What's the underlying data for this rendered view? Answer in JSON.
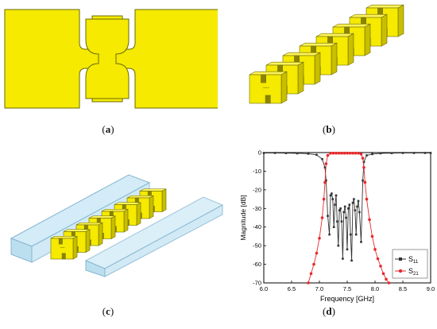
{
  "figure": {
    "captions": {
      "a": "a",
      "b": "b",
      "c": "c",
      "d": "d"
    }
  },
  "colors": {
    "metal": "#f5ea00",
    "metal_edge": "#6b6b00",
    "metal_side": "#c9be00",
    "metal_top": "#fff45a",
    "waveguide": "#bcdff0",
    "waveguide_edge": "#86b6cf",
    "s11": "#222222",
    "s21": "#e8282a"
  },
  "chart_data": {
    "type": "line",
    "xlabel": "Frequency [GHz]",
    "ylabel": "Magnitude [dB]",
    "xlim": [
      6.0,
      9.0
    ],
    "ylim": [
      -70,
      0
    ],
    "x_ticks": [
      "6.0",
      "6.5",
      "7.0",
      "7.5",
      "8.0",
      "8.5",
      "9.0"
    ],
    "y_ticks": [
      "0",
      "-10",
      "-20",
      "-30",
      "-40",
      "-50",
      "-60",
      "-70"
    ],
    "legend_position": "bottom-right",
    "series": [
      {
        "name": "S11",
        "label_main": "S",
        "label_sub": "11",
        "marker": "square",
        "color": "#333333",
        "x": [
          6.0,
          6.2,
          6.4,
          6.6,
          6.8,
          6.95,
          7.05,
          7.1,
          7.12,
          7.15,
          7.18,
          7.2,
          7.22,
          7.24,
          7.26,
          7.28,
          7.3,
          7.32,
          7.34,
          7.36,
          7.38,
          7.4,
          7.42,
          7.44,
          7.46,
          7.48,
          7.5,
          7.52,
          7.54,
          7.56,
          7.58,
          7.6,
          7.62,
          7.64,
          7.66,
          7.68,
          7.7,
          7.72,
          7.75,
          7.78,
          7.8,
          7.85,
          7.95,
          8.1,
          8.3,
          8.5,
          8.7,
          8.9,
          9.0
        ],
        "y": [
          -0.2,
          -0.2,
          -0.3,
          -0.4,
          -0.6,
          -1.2,
          -3.5,
          -8,
          -15,
          -34,
          -44,
          -23,
          -22,
          -25,
          -40,
          -28,
          -23,
          -37,
          -50,
          -31,
          -30,
          -37,
          -57,
          -32,
          -29,
          -35,
          -52,
          -30,
          -28,
          -44,
          -58,
          -27,
          -25,
          -31,
          -44,
          -29,
          -26,
          -32,
          -48,
          -15,
          -5,
          -1.5,
          -0.8,
          -0.4,
          -0.3,
          -0.2,
          -0.2,
          -0.2,
          -0.2
        ]
      },
      {
        "name": "S21",
        "label_main": "S",
        "label_sub": "21",
        "marker": "circle",
        "color": "#e8282a",
        "x": [
          6.8,
          6.85,
          6.9,
          6.95,
          7.0,
          7.05,
          7.08,
          7.1,
          7.12,
          7.15,
          7.2,
          7.25,
          7.3,
          7.35,
          7.4,
          7.45,
          7.5,
          7.55,
          7.6,
          7.65,
          7.7,
          7.75,
          7.78,
          7.8,
          7.82,
          7.85,
          7.9,
          7.95,
          8.0,
          8.05,
          8.1,
          8.15,
          8.2,
          8.25
        ],
        "y": [
          -70,
          -65,
          -60,
          -54,
          -46,
          -35,
          -25,
          -16,
          -6,
          -1.5,
          -0.3,
          -0.3,
          -0.3,
          -0.3,
          -0.3,
          -0.3,
          -0.3,
          -0.3,
          -0.3,
          -0.3,
          -0.3,
          -0.8,
          -3,
          -8,
          -16,
          -25,
          -36,
          -45,
          -52,
          -57,
          -61,
          -65,
          -68,
          -70
        ]
      }
    ]
  }
}
